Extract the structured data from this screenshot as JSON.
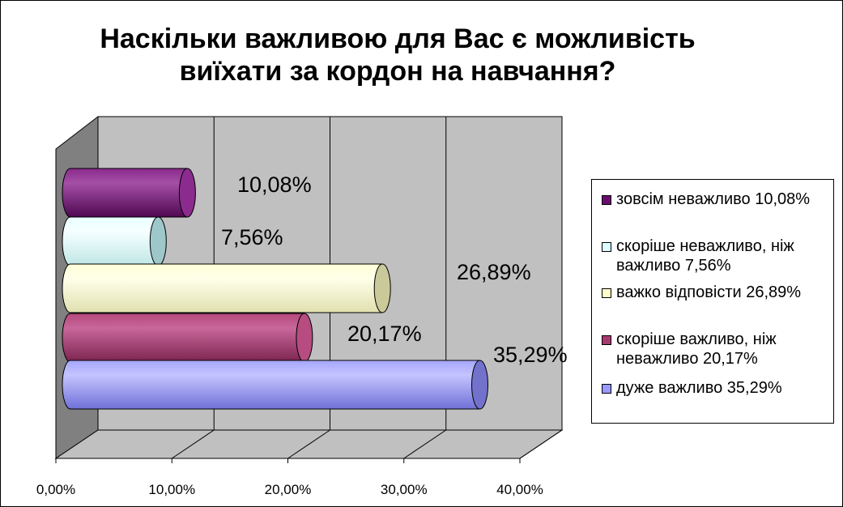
{
  "chart_data": {
    "type": "bar",
    "orientation": "horizontal",
    "three_d": true,
    "title": "Наскільки важливою для Вас є можливість виїхати за кордон на навчання?",
    "title_lines": [
      "Наскільки важливою для Вас є можливість",
      "виїхати за кордон на навчання?"
    ],
    "xlim": [
      0,
      40
    ],
    "x_ticks": [
      0,
      10,
      20,
      30,
      40
    ],
    "x_tick_labels": [
      "0,00%",
      "10,00%",
      "20,00%",
      "30,00%",
      "40,00%"
    ],
    "grid": true,
    "legend_position": "right",
    "series": [
      {
        "name": "зовсім неважливо 10,08%",
        "value": 10.08,
        "data_label": "10,08%",
        "color": "#6B0B6E",
        "cap_color": "#8B2B8E"
      },
      {
        "name": "скоріше неважливо, ніж важливо 7,56%",
        "value": 7.56,
        "data_label": "7,56%",
        "color": "#DDFFFF",
        "cap_color": "#9EC7C9"
      },
      {
        "name": "важко відповісти 26,89%",
        "value": 26.89,
        "data_label": "26,89%",
        "color": "#FFFFCC",
        "cap_color": "#C9C99A"
      },
      {
        "name": "скоріше важливо, ніж неважливо 20,17%",
        "value": 20.17,
        "data_label": "20,17%",
        "color": "#A83A6E",
        "cap_color": "#B64C80"
      },
      {
        "name": "дуже важливо 35,29%",
        "value": 35.29,
        "data_label": "35,29%",
        "color": "#9999FF",
        "cap_color": "#7272CC"
      }
    ]
  }
}
